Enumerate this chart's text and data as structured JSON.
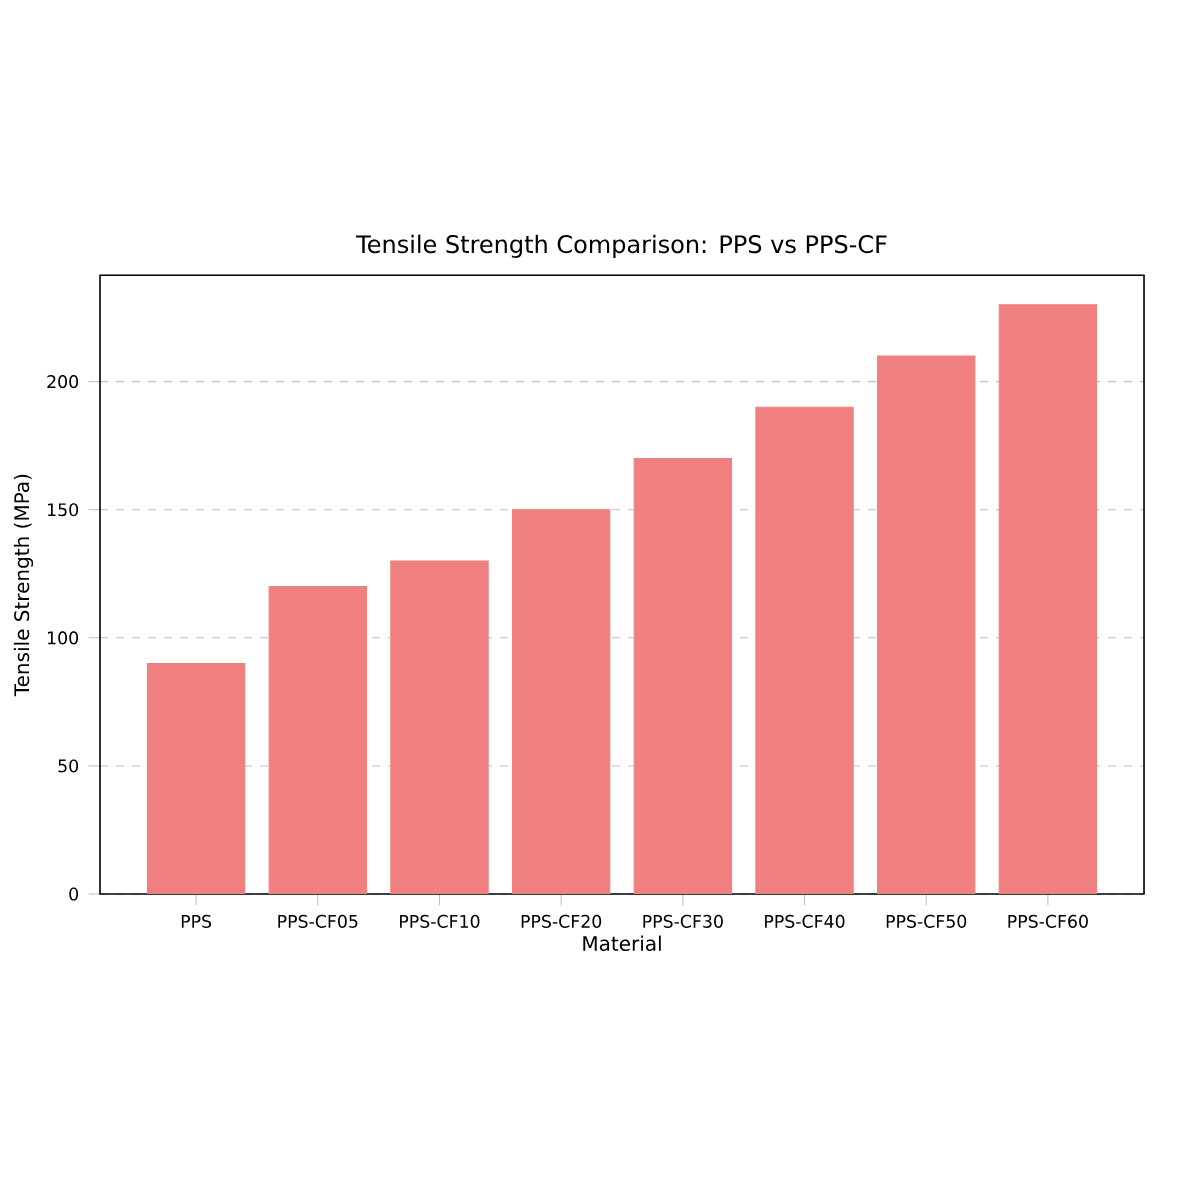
{
  "chart_data": {
    "type": "bar",
    "title": "Tensile Strength Comparison: PPS vs PPS-CF",
    "xlabel": "Material",
    "ylabel": "Tensile Strength (MPa)",
    "categories": [
      "PPS",
      "PPS-CF05",
      "PPS-CF10",
      "PPS-CF20",
      "PPS-CF30",
      "PPS-CF40",
      "PPS-CF50",
      "PPS-CF60"
    ],
    "values": [
      90,
      120,
      130,
      150,
      170,
      190,
      210,
      230
    ],
    "color": "#f08080",
    "ylim": [
      0,
      241.5
    ],
    "yticks": [
      0,
      50,
      100,
      150,
      200
    ],
    "grid": "y"
  }
}
